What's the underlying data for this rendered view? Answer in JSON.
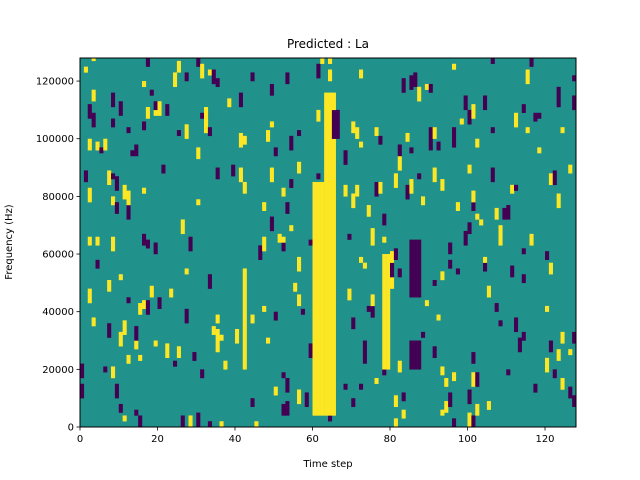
{
  "chart_data": {
    "type": "heatmap",
    "title": "Predicted : La",
    "xlabel": "Time step",
    "ylabel": "Frequency (Hz)",
    "xlim": [
      0,
      128
    ],
    "ylim": [
      0,
      128000
    ],
    "x_ticks": [
      0,
      20,
      40,
      60,
      80,
      100,
      120
    ],
    "y_ticks": [
      0,
      20000,
      40000,
      60000,
      80000,
      100000,
      120000
    ],
    "x_tick_labels": [
      "0",
      "20",
      "40",
      "60",
      "80",
      "100",
      "120"
    ],
    "y_tick_labels": [
      "0",
      "20000",
      "40000",
      "60000",
      "80000",
      "100000",
      "120000"
    ],
    "colormap": "viridis",
    "colors": {
      "background": "#21918c",
      "low": "#440154",
      "high": "#fde725"
    },
    "bins": {
      "time_steps": 128,
      "frequency_bins": 128,
      "frequency_bin_hz": 1000
    },
    "bands": [
      {
        "t0": 60,
        "t1": 63,
        "f0": 4000,
        "f1": 85000,
        "level": "high"
      },
      {
        "t0": 63,
        "t1": 66,
        "f0": 4000,
        "f1": 116000,
        "level": "high"
      },
      {
        "t0": 65,
        "t1": 67,
        "f0": 100000,
        "f1": 110000,
        "level": "low"
      },
      {
        "t0": 85,
        "t1": 88,
        "f0": 45000,
        "f1": 65000,
        "level": "low"
      },
      {
        "t0": 85,
        "t1": 88,
        "f0": 20000,
        "f1": 30000,
        "level": "low"
      },
      {
        "t0": 42,
        "t1": 43,
        "f0": 20000,
        "f1": 55000,
        "level": "high"
      },
      {
        "t0": 78,
        "t1": 80,
        "f0": 20000,
        "f1": 60000,
        "level": "high"
      }
    ],
    "sparse_fraction": {
      "high": 0.035,
      "low": 0.035
    },
    "seed": 7
  }
}
